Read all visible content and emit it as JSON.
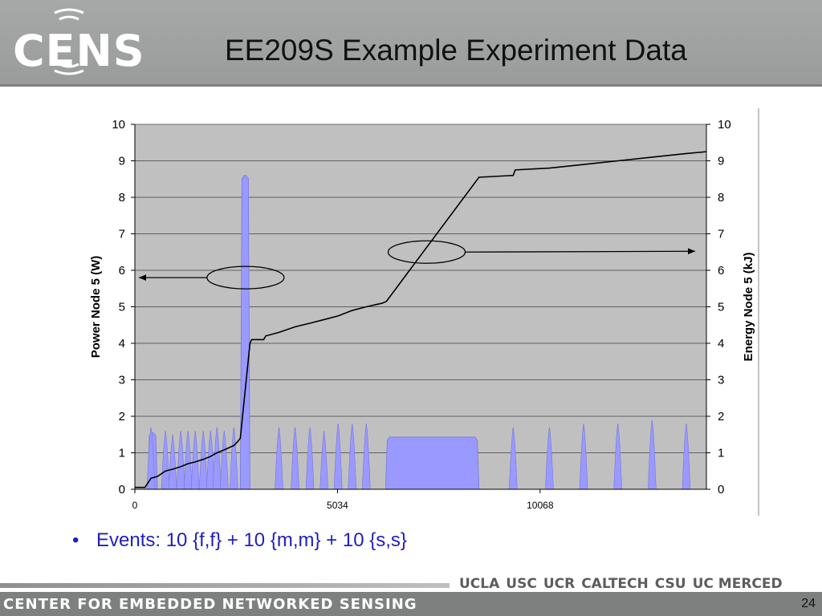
{
  "slide": {
    "logo_text": "CENS",
    "title": "EE209S Example Experiment Data",
    "bullet": "Events: 10 {f,f} + 10 {m,m} + 10 {s,s}",
    "footer_org": "CENTER FOR EMBEDDED NETWORKED SENSING",
    "partners": [
      "UCLA",
      "USC",
      "UCR",
      "CALTECH",
      "CSU",
      "UC MERCED"
    ],
    "page_number": "24"
  },
  "colors": {
    "plot_bg": "#c0c0c0",
    "area_fill": "#9999ff",
    "line": "#000000",
    "bullet_text": "#1f1fc0"
  },
  "chart_data": {
    "type": "area",
    "xlabel": "",
    "ylabel": "Power Node 5 (W)",
    "y2label": "Energy Node 5 (kJ)",
    "x_ticks": [
      "0",
      "5034",
      "10068"
    ],
    "y_ticks": [
      "0",
      "1",
      "2",
      "3",
      "4",
      "5",
      "6",
      "7",
      "8",
      "9",
      "10"
    ],
    "y2_ticks": [
      "0",
      "1",
      "2",
      "3",
      "4",
      "5",
      "6",
      "7",
      "8",
      "9",
      "10"
    ],
    "xlim": [
      0,
      14200
    ],
    "ylim": [
      0,
      10
    ],
    "y2lim": [
      0,
      10
    ],
    "grid": true,
    "series": [
      {
        "kind": "area",
        "axis": "left",
        "spikes": [
          {
            "x": 400,
            "peak": 1.7
          },
          {
            "x": 760,
            "peak": 1.6
          },
          {
            "x": 940,
            "peak": 1.5
          },
          {
            "x": 1140,
            "peak": 1.6
          },
          {
            "x": 1320,
            "peak": 1.6
          },
          {
            "x": 1500,
            "peak": 1.6
          },
          {
            "x": 1700,
            "peak": 1.6
          },
          {
            "x": 1880,
            "peak": 1.6
          },
          {
            "x": 2040,
            "peak": 1.7
          },
          {
            "x": 2220,
            "peak": 1.6
          },
          {
            "x": 2460,
            "peak": 1.7
          },
          {
            "x": 3580,
            "peak": 1.7
          },
          {
            "x": 3980,
            "peak": 1.7
          },
          {
            "x": 4350,
            "peak": 1.7
          },
          {
            "x": 4700,
            "peak": 1.6
          },
          {
            "x": 5050,
            "peak": 1.8
          },
          {
            "x": 5400,
            "peak": 1.8
          },
          {
            "x": 5750,
            "peak": 1.8
          },
          {
            "x": 9400,
            "peak": 1.7
          },
          {
            "x": 10300,
            "peak": 1.7
          },
          {
            "x": 11150,
            "peak": 1.8
          },
          {
            "x": 12000,
            "peak": 1.8
          },
          {
            "x": 12850,
            "peak": 1.9
          },
          {
            "x": 13700,
            "peak": 1.8
          }
        ],
        "blocks": [
          {
            "x0": 320,
            "x1": 560,
            "level": 1.55
          },
          {
            "x0": 2620,
            "x1": 2860,
            "level": 8.6
          },
          {
            "x0": 6230,
            "x1": 8550,
            "level": 1.43
          }
        ]
      },
      {
        "kind": "line",
        "axis": "right",
        "points": [
          [
            0,
            0.05
          ],
          [
            250,
            0.05
          ],
          [
            400,
            0.3
          ],
          [
            560,
            0.35
          ],
          [
            760,
            0.5
          ],
          [
            940,
            0.55
          ],
          [
            1140,
            0.62
          ],
          [
            1320,
            0.7
          ],
          [
            1500,
            0.75
          ],
          [
            1700,
            0.82
          ],
          [
            1880,
            0.9
          ],
          [
            2040,
            1.0
          ],
          [
            2220,
            1.08
          ],
          [
            2460,
            1.2
          ],
          [
            2550,
            1.3
          ],
          [
            2620,
            1.4
          ],
          [
            2860,
            4.0
          ],
          [
            2900,
            4.1
          ],
          [
            3200,
            4.1
          ],
          [
            3250,
            4.2
          ],
          [
            3580,
            4.3
          ],
          [
            3980,
            4.45
          ],
          [
            4350,
            4.55
          ],
          [
            4700,
            4.65
          ],
          [
            5050,
            4.75
          ],
          [
            5400,
            4.9
          ],
          [
            5750,
            5.0
          ],
          [
            6150,
            5.1
          ],
          [
            6250,
            5.15
          ],
          [
            8550,
            8.55
          ],
          [
            9400,
            8.6
          ],
          [
            9450,
            8.75
          ],
          [
            10300,
            8.8
          ],
          [
            11150,
            8.9
          ],
          [
            12000,
            9.0
          ],
          [
            12850,
            9.1
          ],
          [
            13700,
            9.2
          ],
          [
            14200,
            9.25
          ]
        ]
      }
    ],
    "annotations": [
      {
        "type": "ellipse-arrow",
        "target": "left-axis",
        "x": 2750,
        "y": 5.8
      },
      {
        "type": "ellipse-arrow",
        "target": "right-axis",
        "x": 7250,
        "y": 6.5
      }
    ]
  }
}
